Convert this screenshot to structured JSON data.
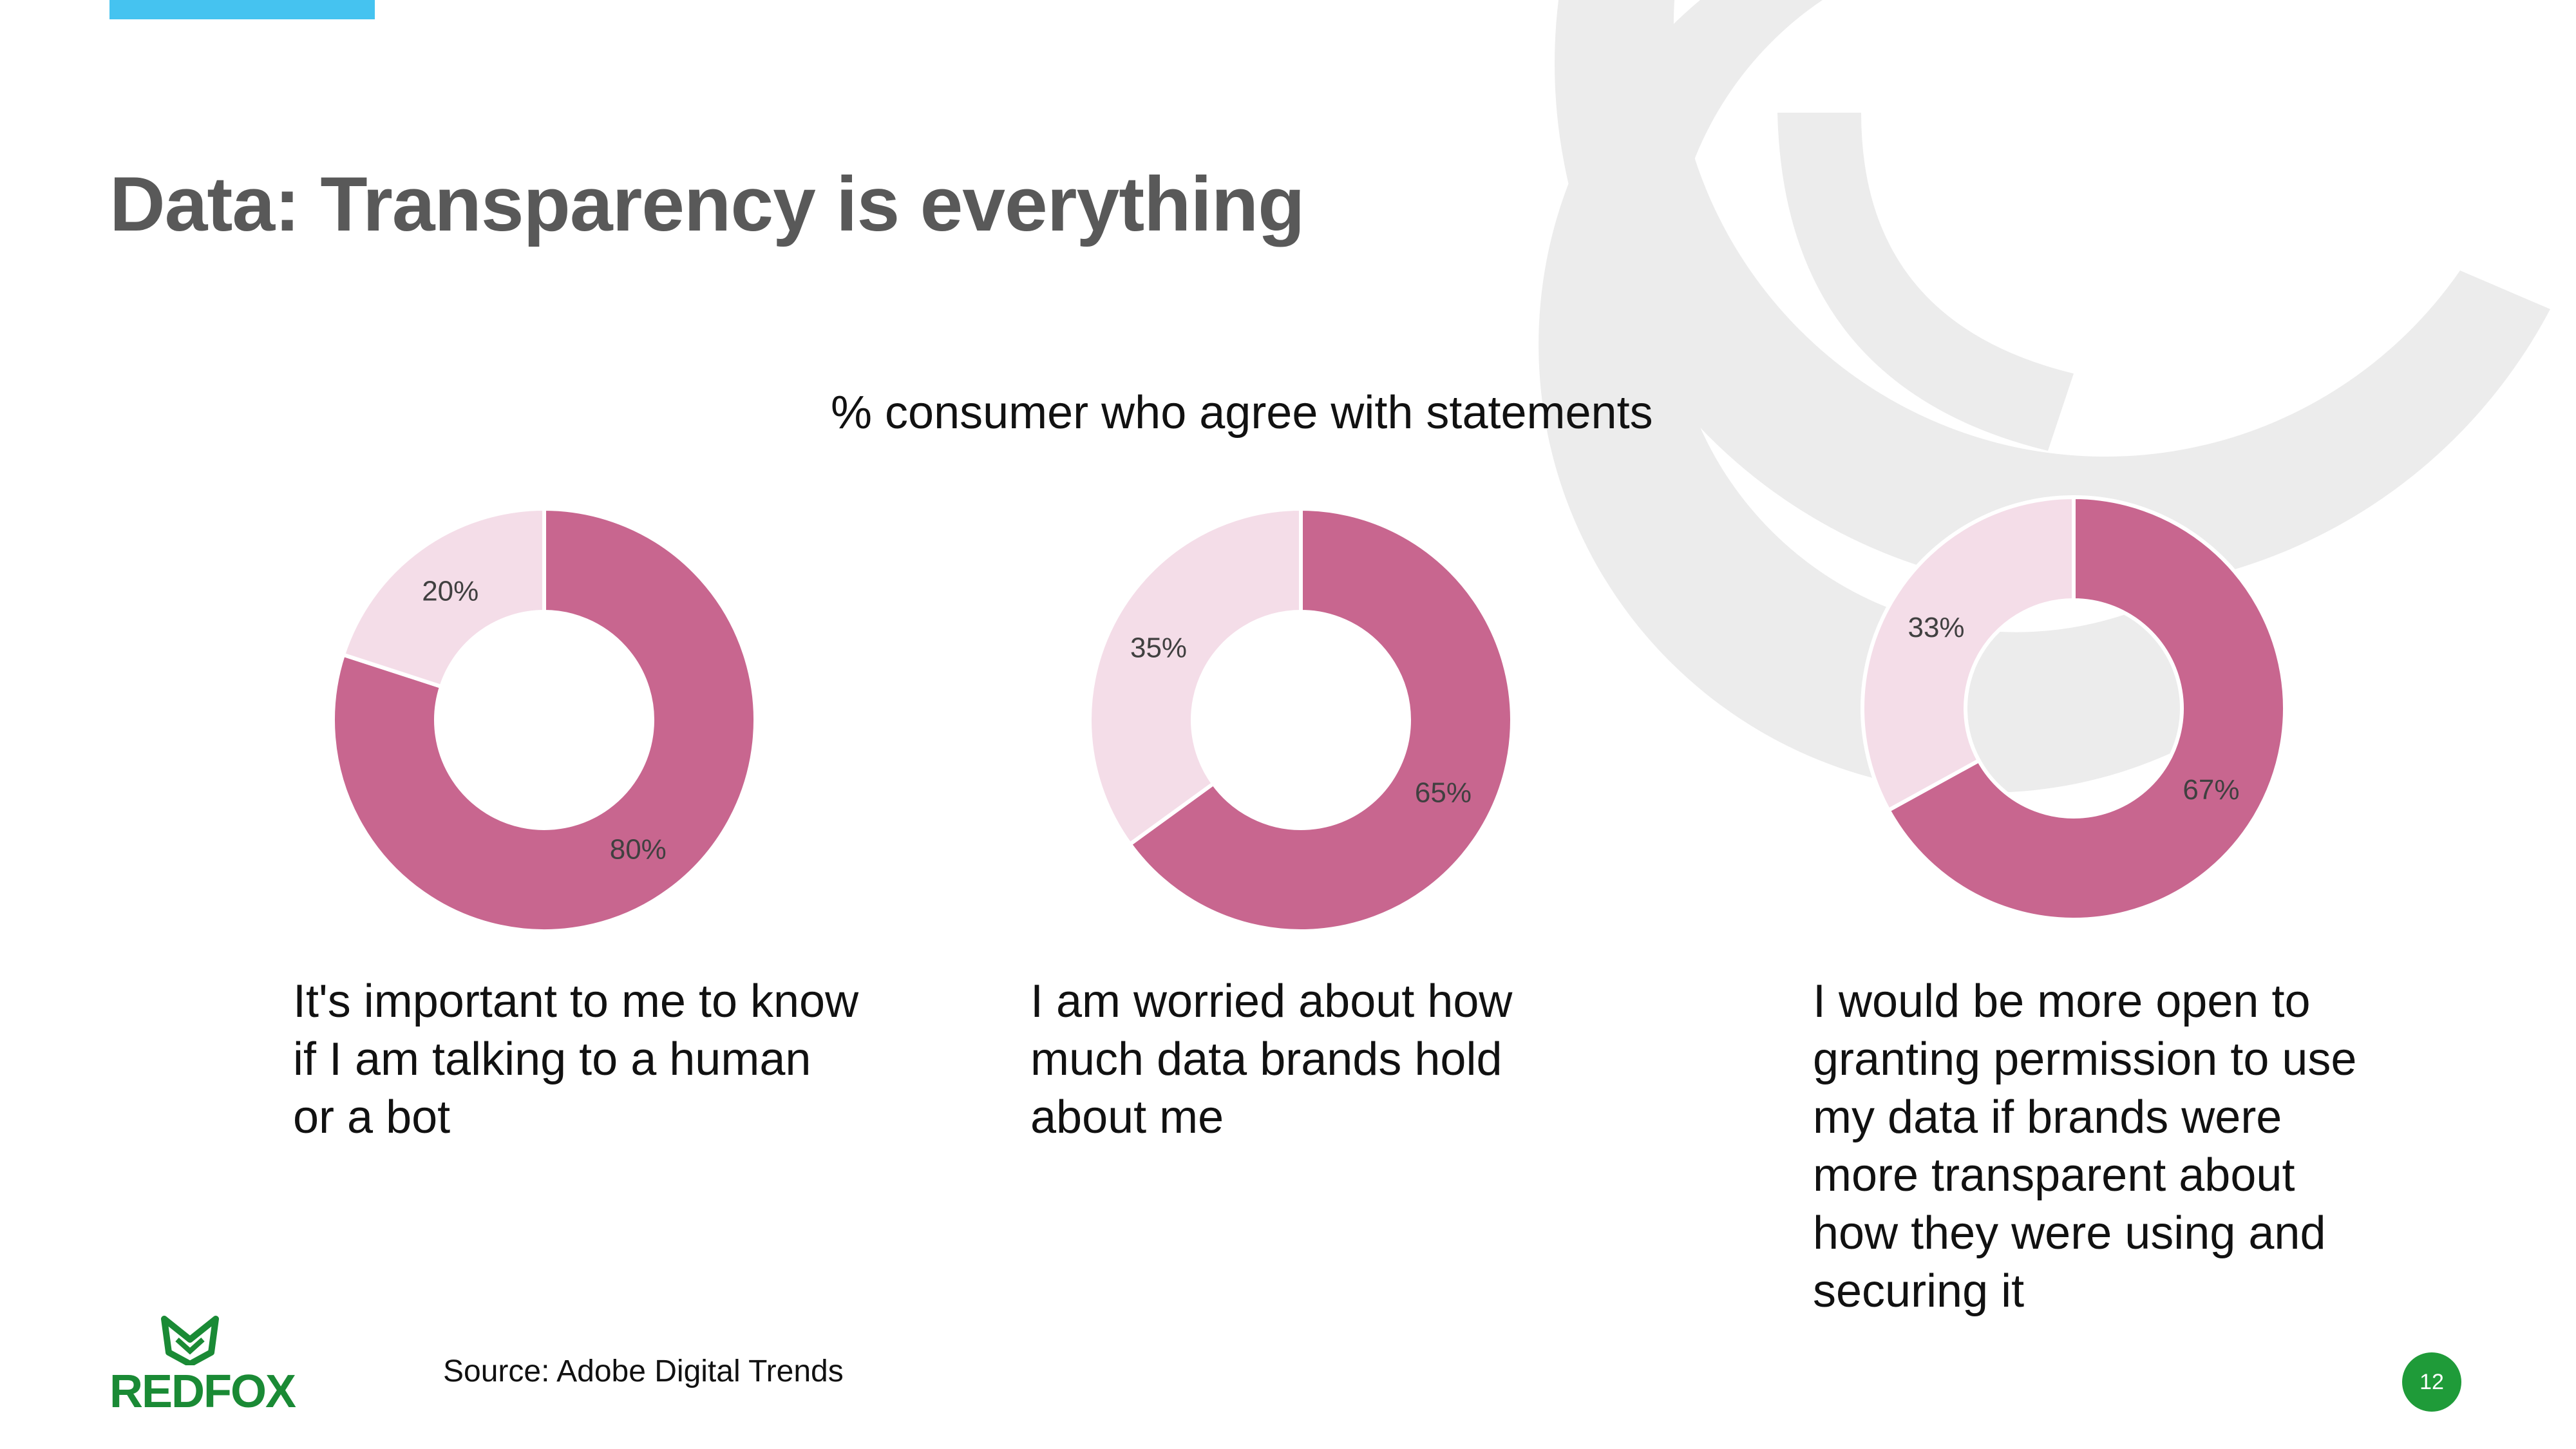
{
  "slide": {
    "title": "Data: Transparency is everything",
    "subtitle": "% consumer who agree with statements",
    "source": "Source:  Adobe Digital Trends",
    "logo_text": "REDFOX",
    "page_number": "12"
  },
  "colors": {
    "accent_bar": "#45c3f0",
    "agree": "#c8668f",
    "disagree": "#f4dde8",
    "deco": "#ececec",
    "logo_green": "#1a8a35",
    "page_badge": "#1f9b39"
  },
  "chart_data": [
    {
      "type": "pie",
      "caption": "It's important to me to know if I am talking to a human or a bot",
      "slices": [
        {
          "value": 80,
          "label": "80%"
        },
        {
          "value": 20,
          "label": "20%"
        }
      ]
    },
    {
      "type": "pie",
      "caption": "I am worried about how much data brands hold about me",
      "slices": [
        {
          "value": 65,
          "label": "65%"
        },
        {
          "value": 35,
          "label": "35%"
        }
      ]
    },
    {
      "type": "pie",
      "caption": "I would be more open to granting permission to use my data if brands were more transparent about how they were using and securing it",
      "slices": [
        {
          "value": 67,
          "label": "67%"
        },
        {
          "value": 33,
          "label": "33%"
        }
      ]
    }
  ]
}
